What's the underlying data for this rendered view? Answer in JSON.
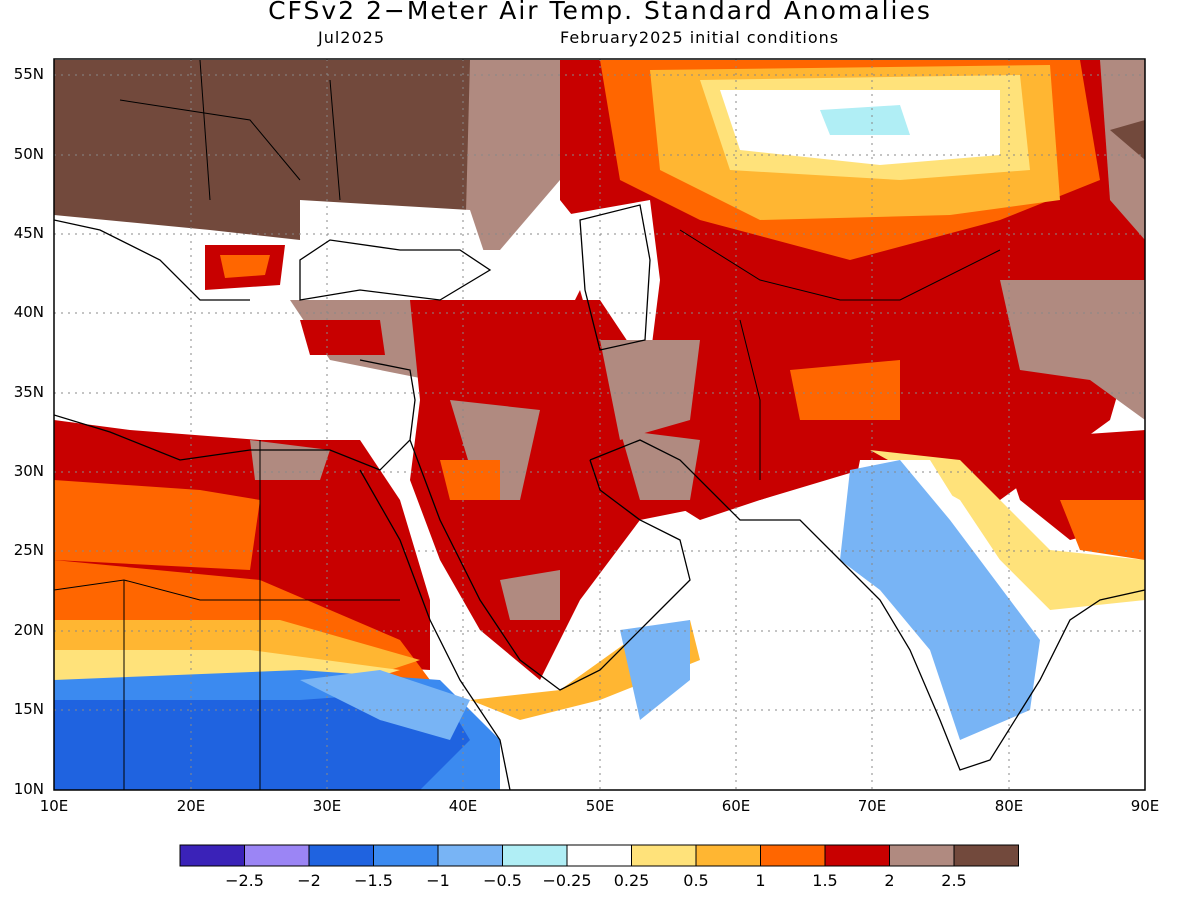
{
  "title": "CFSv2 2−Meter Air Temp. Standard Anomalies",
  "subtitle_left": "Jul2025",
  "subtitle_right": "February2025 initial conditions",
  "lat_labels": [
    "55N",
    "50N",
    "45N",
    "40N",
    "35N",
    "30N",
    "25N",
    "20N",
    "15N",
    "10N"
  ],
  "lon_labels": [
    "10E",
    "20E",
    "30E",
    "40E",
    "50E",
    "60E",
    "70E",
    "80E",
    "90E"
  ],
  "colorbar": {
    "colors": [
      "#3a22b8",
      "#9b85f5",
      "#1f63e0",
      "#3b8af0",
      "#78b4f5",
      "#b0eef5",
      "#ffffff",
      "#ffe27a",
      "#ffb632",
      "#ff6600",
      "#c80000",
      "#b08a80",
      "#72493c"
    ],
    "labels": [
      "−2.5",
      "−2",
      "−1.5",
      "−1",
      "−0.5",
      "−0.25",
      "0.25",
      "0.5",
      "1",
      "1.5",
      "2",
      "2.5"
    ]
  },
  "map": {
    "lon_range": [
      10,
      90
    ],
    "lat_range": [
      10,
      56
    ],
    "grid": "dotted"
  }
}
